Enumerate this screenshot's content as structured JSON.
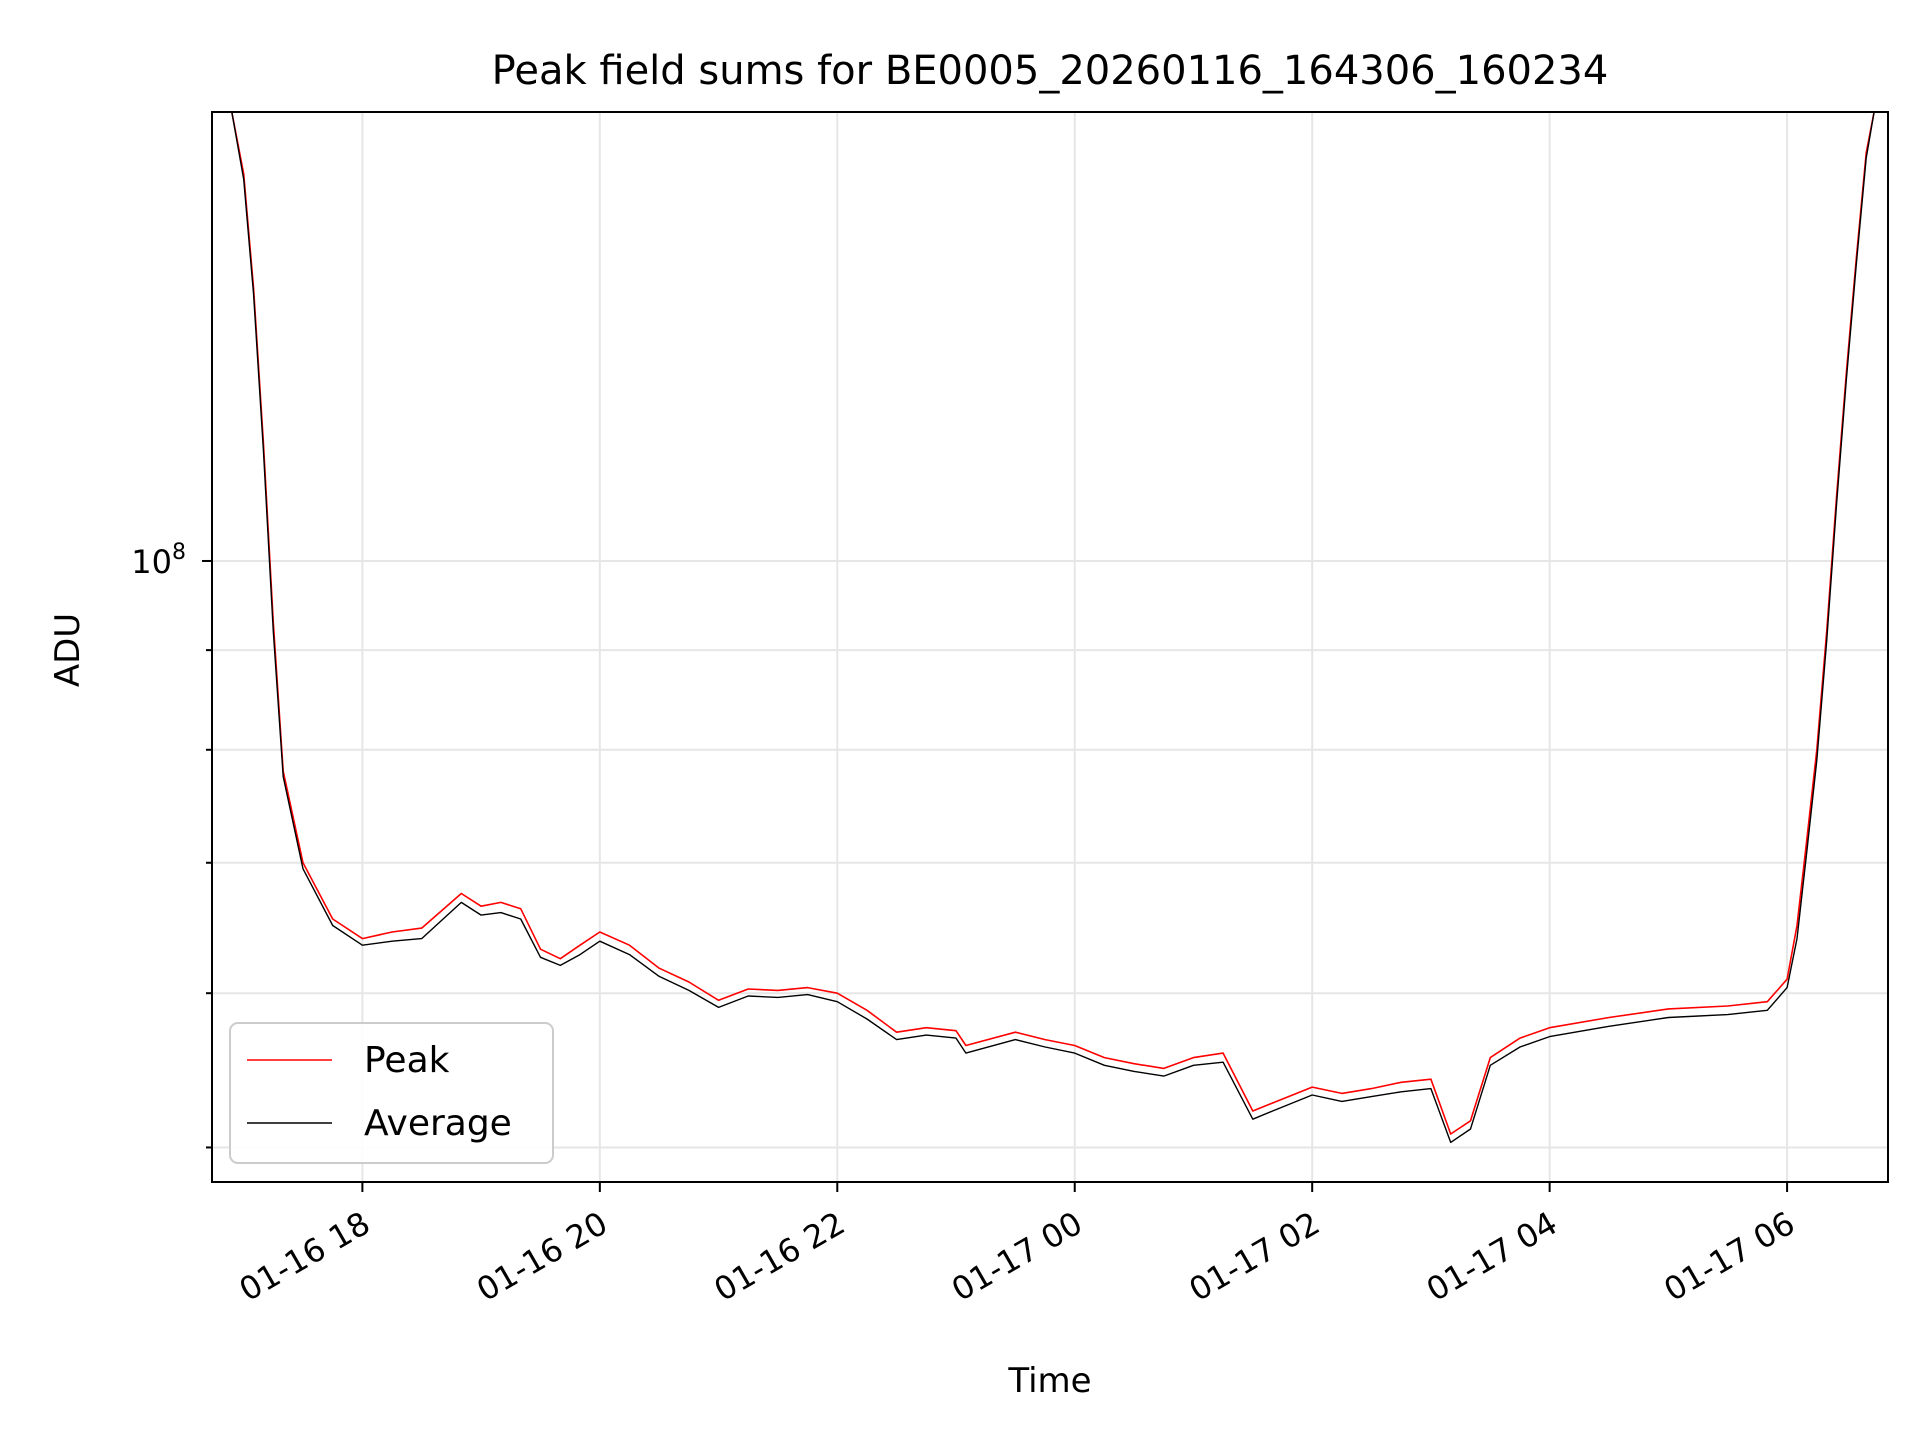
{
  "chart_data": {
    "type": "line",
    "title": "Peak field sums for BE0005_20260116_164306_160234",
    "xlabel": "Time",
    "ylabel": "ADU",
    "yscale": "log",
    "xlim": [
      "2026-01-16 16:44",
      "2026-01-17 06:51"
    ],
    "ylim": [
      48000000,
      170000000
    ],
    "grid": true,
    "legend_position": "lower-left",
    "x_ticks": [
      "01-16 18",
      "01-16 20",
      "01-16 22",
      "01-17 00",
      "01-17 02",
      "01-17 04",
      "01-17 06"
    ],
    "y_ticks_major": [
      {
        "base": "10",
        "exp": "8",
        "value": 100000000
      }
    ],
    "colors": {
      "peak": "#ff0000",
      "average": "#000000",
      "grid": "#e6e6e6"
    },
    "series": [
      {
        "name": "Peak",
        "color": "#ff0000",
        "x": [
          "2026-01-16 16:54",
          "2026-01-16 17:00",
          "2026-01-16 17:05",
          "2026-01-16 17:10",
          "2026-01-16 17:15",
          "2026-01-16 17:20",
          "2026-01-16 17:30",
          "2026-01-16 17:45",
          "2026-01-16 18:00",
          "2026-01-16 18:15",
          "2026-01-16 18:30",
          "2026-01-16 18:50",
          "2026-01-16 19:00",
          "2026-01-16 19:10",
          "2026-01-16 19:20",
          "2026-01-16 19:30",
          "2026-01-16 19:40",
          "2026-01-16 19:50",
          "2026-01-16 20:00",
          "2026-01-16 20:15",
          "2026-01-16 20:30",
          "2026-01-16 20:45",
          "2026-01-16 21:00",
          "2026-01-16 21:15",
          "2026-01-16 21:30",
          "2026-01-16 21:45",
          "2026-01-16 22:00",
          "2026-01-16 22:15",
          "2026-01-16 22:30",
          "2026-01-16 22:45",
          "2026-01-16 23:00",
          "2026-01-16 23:05",
          "2026-01-16 23:30",
          "2026-01-16 23:45",
          "2026-01-17 00:00",
          "2026-01-17 00:15",
          "2026-01-17 00:30",
          "2026-01-17 00:45",
          "2026-01-17 01:00",
          "2026-01-17 01:15",
          "2026-01-17 01:30",
          "2026-01-17 01:40",
          "2026-01-17 02:00",
          "2026-01-17 02:15",
          "2026-01-17 02:30",
          "2026-01-17 02:45",
          "2026-01-17 03:00",
          "2026-01-17 03:10",
          "2026-01-17 03:20",
          "2026-01-17 03:30",
          "2026-01-17 03:45",
          "2026-01-17 04:00",
          "2026-01-17 04:30",
          "2026-01-17 05:00",
          "2026-01-17 05:30",
          "2026-01-17 05:50",
          "2026-01-17 06:00",
          "2026-01-17 06:05",
          "2026-01-17 06:10",
          "2026-01-17 06:15",
          "2026-01-17 06:20",
          "2026-01-17 06:25",
          "2026-01-17 06:30",
          "2026-01-17 06:35",
          "2026-01-17 06:40",
          "2026-01-17 06:44"
        ],
        "values": [
          170000000,
          158000000,
          138000000,
          115000000,
          93000000,
          78000000,
          70000000,
          65500000,
          64000000,
          64500000,
          64800000,
          67500000,
          66500000,
          66800000,
          66300000,
          63200000,
          62500000,
          63500000,
          64500000,
          63500000,
          61800000,
          60800000,
          59500000,
          60300000,
          60200000,
          60400000,
          60000000,
          58800000,
          57300000,
          57600000,
          57400000,
          56400000,
          57300000,
          56800000,
          56400000,
          55600000,
          55200000,
          54900000,
          55600000,
          55900000,
          52200000,
          52700000,
          53700000,
          53300000,
          53600000,
          54000000,
          54200000,
          50800000,
          51600000,
          55600000,
          56900000,
          57600000,
          58300000,
          58900000,
          59100000,
          59400000,
          61000000,
          65000000,
          72000000,
          80000000,
          92000000,
          108000000,
          125000000,
          143000000,
          162000000,
          170000000
        ]
      },
      {
        "name": "Average",
        "color": "#000000",
        "x": [
          "2026-01-16 16:54",
          "2026-01-16 17:00",
          "2026-01-16 17:05",
          "2026-01-16 17:10",
          "2026-01-16 17:15",
          "2026-01-16 17:20",
          "2026-01-16 17:30",
          "2026-01-16 17:45",
          "2026-01-16 18:00",
          "2026-01-16 18:15",
          "2026-01-16 18:30",
          "2026-01-16 18:50",
          "2026-01-16 19:00",
          "2026-01-16 19:10",
          "2026-01-16 19:20",
          "2026-01-16 19:30",
          "2026-01-16 19:40",
          "2026-01-16 19:50",
          "2026-01-16 20:00",
          "2026-01-16 20:15",
          "2026-01-16 20:30",
          "2026-01-16 20:45",
          "2026-01-16 21:00",
          "2026-01-16 21:15",
          "2026-01-16 21:30",
          "2026-01-16 21:45",
          "2026-01-16 22:00",
          "2026-01-16 22:15",
          "2026-01-16 22:30",
          "2026-01-16 22:45",
          "2026-01-16 23:00",
          "2026-01-16 23:05",
          "2026-01-16 23:30",
          "2026-01-16 23:45",
          "2026-01-17 00:00",
          "2026-01-17 00:15",
          "2026-01-17 00:30",
          "2026-01-17 00:45",
          "2026-01-17 01:00",
          "2026-01-17 01:15",
          "2026-01-17 01:30",
          "2026-01-17 01:40",
          "2026-01-17 02:00",
          "2026-01-17 02:15",
          "2026-01-17 02:30",
          "2026-01-17 02:45",
          "2026-01-17 03:00",
          "2026-01-17 03:10",
          "2026-01-17 03:20",
          "2026-01-17 03:30",
          "2026-01-17 03:45",
          "2026-01-17 04:00",
          "2026-01-17 04:30",
          "2026-01-17 05:00",
          "2026-01-17 05:30",
          "2026-01-17 05:50",
          "2026-01-17 06:00",
          "2026-01-17 06:05",
          "2026-01-17 06:10",
          "2026-01-17 06:15",
          "2026-01-17 06:20",
          "2026-01-17 06:25",
          "2026-01-17 06:30",
          "2026-01-17 06:35",
          "2026-01-17 06:40",
          "2026-01-17 06:44"
        ],
        "values": [
          170000000,
          157000000,
          137000000,
          114000000,
          92000000,
          77500000,
          69500000,
          65000000,
          63500000,
          63800000,
          64000000,
          66800000,
          65800000,
          66000000,
          65500000,
          62600000,
          62000000,
          62800000,
          63800000,
          62800000,
          61200000,
          60200000,
          59000000,
          59800000,
          59700000,
          59900000,
          59400000,
          58200000,
          56800000,
          57100000,
          56900000,
          55900000,
          56800000,
          56300000,
          55900000,
          55100000,
          54700000,
          54400000,
          55100000,
          55300000,
          51700000,
          52200000,
          53200000,
          52800000,
          53100000,
          53400000,
          53600000,
          50300000,
          51100000,
          55100000,
          56300000,
          57000000,
          57700000,
          58300000,
          58500000,
          58800000,
          60400000,
          64000000,
          71000000,
          79000000,
          91000000,
          107000000,
          124000000,
          142000000,
          161000000,
          170000000
        ]
      }
    ]
  }
}
